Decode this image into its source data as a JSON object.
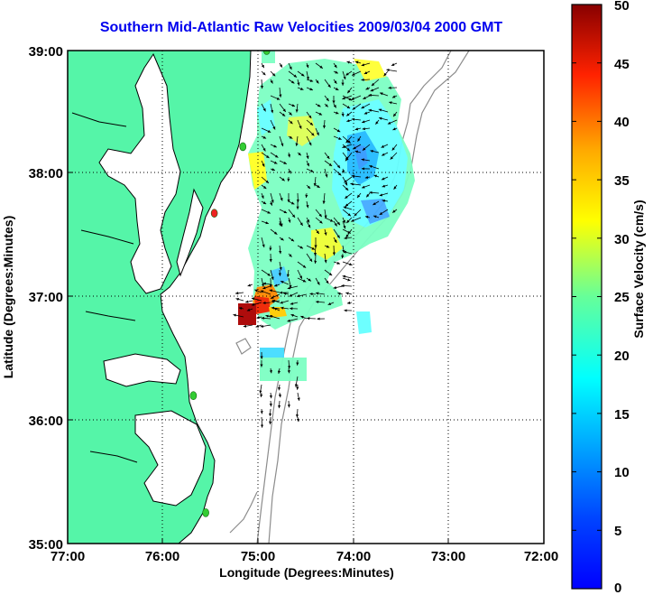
{
  "title": "Southern Mid-Atlantic Raw Velocities 2009/03/04 2000 GMT",
  "xlabel": "Longitude (Degrees:Minutes)",
  "ylabel": "Latitude (Degrees:Minutes)",
  "x_ticks": [
    "77:00",
    "76:00",
    "75:00",
    "74:00",
    "73:00",
    "72:00"
  ],
  "y_ticks": [
    "39:00",
    "38:00",
    "37:00",
    "36:00",
    "35:00"
  ],
  "colorbar": {
    "label": "Surface Velocity (cm/s)",
    "ticks": [
      "50",
      "45",
      "40",
      "35",
      "30",
      "25",
      "20",
      "15",
      "10",
      "5",
      "0"
    ],
    "colormap": "jet",
    "range": [
      0,
      50
    ]
  },
  "colors": {
    "land": "#55f5a8",
    "coastline": "#000000",
    "bathymetry": "#8c8c8c",
    "title": "#0000ee",
    "station_active": "#33cc33",
    "station_alert": "#ee2222"
  },
  "map": {
    "lon_range": [
      -77,
      -72
    ],
    "lat_range": [
      35,
      39
    ],
    "stations": [
      {
        "lon": -74.91,
        "lat": 39.0,
        "status": "active"
      },
      {
        "lon": -75.16,
        "lat": 38.22,
        "status": "active"
      },
      {
        "lon": -75.46,
        "lat": 37.68,
        "status": "alert"
      },
      {
        "lon": -75.68,
        "lat": 36.2,
        "status": "active"
      },
      {
        "lon": -75.55,
        "lat": 35.25,
        "status": "active"
      }
    ]
  }
}
